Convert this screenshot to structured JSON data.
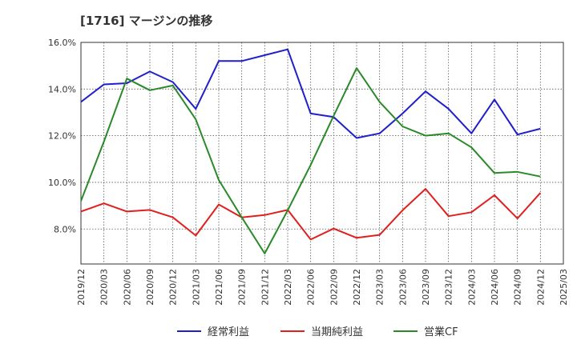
{
  "chart_data": {
    "type": "line",
    "title": "[1716]  マージンの推移",
    "x": [
      "2019/12",
      "2020/03",
      "2020/06",
      "2020/09",
      "2020/12",
      "2021/03",
      "2021/06",
      "2021/09",
      "2021/12",
      "2022/03",
      "2022/06",
      "2022/09",
      "2022/12",
      "2023/03",
      "2023/06",
      "2023/09",
      "2023/12",
      "2024/03",
      "2024/06",
      "2024/09",
      "2024/12",
      "2025/03"
    ],
    "ylim": [
      6.5,
      16.0
    ],
    "yticks": [
      8.0,
      10.0,
      12.0,
      14.0,
      16.0
    ],
    "ytick_labels": [
      "8.0%",
      "10.0%",
      "12.0%",
      "14.0%",
      "16.0%"
    ],
    "grid": true,
    "legend_position": "bottom",
    "series": [
      {
        "name": "経常利益",
        "color": "#1f1fcc",
        "values": [
          13.45,
          14.2,
          14.25,
          14.75,
          14.3,
          13.15,
          15.2,
          15.2,
          15.45,
          15.7,
          12.95,
          12.8,
          11.9,
          12.1,
          12.95,
          13.9,
          13.15,
          12.1,
          13.55,
          12.05,
          12.3,
          null
        ]
      },
      {
        "name": "当期純利益",
        "color": "#e0201e",
        "values": [
          8.75,
          9.1,
          8.75,
          8.82,
          8.5,
          7.72,
          9.05,
          8.5,
          8.6,
          8.82,
          7.55,
          8.02,
          7.62,
          7.75,
          8.8,
          9.72,
          8.55,
          8.72,
          9.45,
          8.45,
          9.55,
          null
        ]
      },
      {
        "name": "営業CF",
        "color": "#2a8a2a",
        "values": [
          9.2,
          11.75,
          14.45,
          13.95,
          14.15,
          12.7,
          10.1,
          8.5,
          6.95,
          8.8,
          10.75,
          12.85,
          14.9,
          13.45,
          12.4,
          12.0,
          12.1,
          11.5,
          10.4,
          10.45,
          10.25,
          null
        ]
      }
    ]
  }
}
